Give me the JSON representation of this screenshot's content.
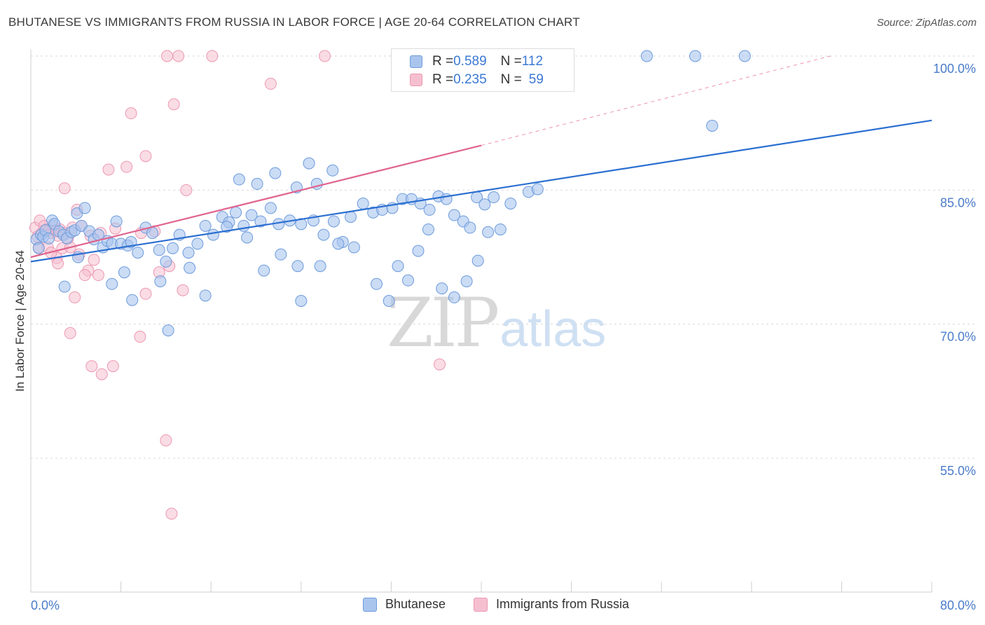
{
  "header": {
    "title": "BHUTANESE VS IMMIGRANTS FROM RUSSIA IN LABOR FORCE | AGE 20-64 CORRELATION CHART",
    "source": "Source: ZipAtlas.com"
  },
  "watermark": {
    "zip": "ZIP",
    "atlas": "atlas"
  },
  "legend": {
    "rows": [
      {
        "r_label": "R = ",
        "r_value": "0.589",
        "n_label": "N = ",
        "n_value": "112"
      },
      {
        "r_label": "R = ",
        "r_value": "0.235",
        "n_label": "N = ",
        "n_value": "59"
      }
    ]
  },
  "bottom_legend": {
    "series_a": "Bhutanese",
    "series_b": "Immigrants from Russia"
  },
  "colors": {
    "blue_fill": "#a9c5ee",
    "blue_stroke": "#6d9bdc",
    "blue_line": "#2b6fd1",
    "pink_fill": "#f6bfd0",
    "pink_stroke": "#ec98b3",
    "pink_line": "#e0648f",
    "grid": "#d9d9d9",
    "tick_text": "#4a7cc9"
  },
  "chart_data": {
    "type": "scatter",
    "title": "BHUTANESE VS IMMIGRANTS FROM RUSSIA IN LABOR FORCE | AGE 20-64 CORRELATION CHART",
    "xlabel": "",
    "ylabel": "In Labor Force | Age 20-64",
    "xlim": [
      0,
      80
    ],
    "ylim": [
      40,
      102
    ],
    "x_tick_labels": [
      "0.0%",
      "80.0%"
    ],
    "y_ticks": [
      55,
      70,
      85,
      100
    ],
    "y_tick_labels": [
      "55.0%",
      "70.0%",
      "85.0%",
      "100.0%"
    ],
    "grid": "horizontal dashed",
    "legend_position": "top-center",
    "series": [
      {
        "name": "Bhutanese",
        "r": 0.589,
        "n": 112,
        "trend": {
          "x": [
            0,
            80
          ],
          "y": [
            77.0,
            92.8
          ]
        },
        "points": [
          [
            0.5,
            79.5
          ],
          [
            0.7,
            78.5
          ],
          [
            0.9,
            80.0
          ],
          [
            1.1,
            79.8
          ],
          [
            1.3,
            80.5
          ],
          [
            1.6,
            79.6
          ],
          [
            1.9,
            81.6
          ],
          [
            2.1,
            81.2
          ],
          [
            2.5,
            80.4
          ],
          [
            2.9,
            80.0
          ],
          [
            3.2,
            79.6
          ],
          [
            3.6,
            80.3
          ],
          [
            3.9,
            80.5
          ],
          [
            4.1,
            82.4
          ],
          [
            4.5,
            81.0
          ],
          [
            4.8,
            83.0
          ],
          [
            5.2,
            80.4
          ],
          [
            5.6,
            79.5
          ],
          [
            6.0,
            80.0
          ],
          [
            6.4,
            78.6
          ],
          [
            6.8,
            79.3
          ],
          [
            7.2,
            79.0
          ],
          [
            7.6,
            81.5
          ],
          [
            8.0,
            79.0
          ],
          [
            8.6,
            78.8
          ],
          [
            8.9,
            79.2
          ],
          [
            9.5,
            78.0
          ],
          [
            10.2,
            80.8
          ],
          [
            10.8,
            80.2
          ],
          [
            11.4,
            78.3
          ],
          [
            12.0,
            77.0
          ],
          [
            12.6,
            78.5
          ],
          [
            13.2,
            80.0
          ],
          [
            14.0,
            78.0
          ],
          [
            14.8,
            79.0
          ],
          [
            15.5,
            81.0
          ],
          [
            16.2,
            80.0
          ],
          [
            17.0,
            82.0
          ],
          [
            17.6,
            81.4
          ],
          [
            18.2,
            82.5
          ],
          [
            18.9,
            81.0
          ],
          [
            19.6,
            82.2
          ],
          [
            20.4,
            81.5
          ],
          [
            21.3,
            83.0
          ],
          [
            22.0,
            81.2
          ],
          [
            23.0,
            81.6
          ],
          [
            24.0,
            81.2
          ],
          [
            25.1,
            81.6
          ],
          [
            26.0,
            80.0
          ],
          [
            26.9,
            81.5
          ],
          [
            27.7,
            79.2
          ],
          [
            28.4,
            82.0
          ],
          [
            29.5,
            83.5
          ],
          [
            30.4,
            82.5
          ],
          [
            31.2,
            82.8
          ],
          [
            32.1,
            83.0
          ],
          [
            33.0,
            84.0
          ],
          [
            33.8,
            84.0
          ],
          [
            34.6,
            83.5
          ],
          [
            35.4,
            82.8
          ],
          [
            36.2,
            84.3
          ],
          [
            36.9,
            84.0
          ],
          [
            37.6,
            82.2
          ],
          [
            38.4,
            81.5
          ],
          [
            39.0,
            80.8
          ],
          [
            39.6,
            84.2
          ],
          [
            40.3,
            83.4
          ],
          [
            41.1,
            84.2
          ],
          [
            42.6,
            83.5
          ],
          [
            44.2,
            84.8
          ],
          [
            45.0,
            85.1
          ],
          [
            54.7,
            100
          ],
          [
            59.0,
            100
          ],
          [
            63.4,
            100
          ],
          [
            60.5,
            92.2
          ],
          [
            3.0,
            74.2
          ],
          [
            4.2,
            77.5
          ],
          [
            7.2,
            74.5
          ],
          [
            8.3,
            75.8
          ],
          [
            9.0,
            72.7
          ],
          [
            11.5,
            74.8
          ],
          [
            12.2,
            69.3
          ],
          [
            14.1,
            76.3
          ],
          [
            15.5,
            73.2
          ],
          [
            17.4,
            80.9
          ],
          [
            18.5,
            86.2
          ],
          [
            20.1,
            85.7
          ],
          [
            21.7,
            86.9
          ],
          [
            23.6,
            85.3
          ],
          [
            24.7,
            88.0
          ],
          [
            25.4,
            85.7
          ],
          [
            26.8,
            87.2
          ],
          [
            19.2,
            79.7
          ],
          [
            20.7,
            76.0
          ],
          [
            22.2,
            77.8
          ],
          [
            23.7,
            76.5
          ],
          [
            24.0,
            72.6
          ],
          [
            25.7,
            76.5
          ],
          [
            27.3,
            79.0
          ],
          [
            28.7,
            78.6
          ],
          [
            30.7,
            74.5
          ],
          [
            31.8,
            72.6
          ],
          [
            32.6,
            76.5
          ],
          [
            33.5,
            74.9
          ],
          [
            34.4,
            78.2
          ],
          [
            35.3,
            80.6
          ],
          [
            36.5,
            74.0
          ],
          [
            37.6,
            73.0
          ],
          [
            38.7,
            74.8
          ],
          [
            39.7,
            77.1
          ],
          [
            40.6,
            80.3
          ],
          [
            41.7,
            80.6
          ]
        ]
      },
      {
        "name": "Immigrants from Russia",
        "r": 0.235,
        "n": 59,
        "trend": {
          "x": [
            0,
            40
          ],
          "y": [
            77.5,
            90.0
          ]
        },
        "trend_dashed": {
          "x": [
            40,
            71
          ],
          "y": [
            90.0,
            100.0
          ]
        },
        "points": [
          [
            0.4,
            80.8
          ],
          [
            0.6,
            79.8
          ],
          [
            0.8,
            81.6
          ],
          [
            1.0,
            80.2
          ],
          [
            1.2,
            81.0
          ],
          [
            1.4,
            80.6
          ],
          [
            1.6,
            80.5
          ],
          [
            1.8,
            80.2
          ],
          [
            2.0,
            81.0
          ],
          [
            2.2,
            80.4
          ],
          [
            2.4,
            79.9
          ],
          [
            2.6,
            80.6
          ],
          [
            2.9,
            80.2
          ],
          [
            3.3,
            79.6
          ],
          [
            3.7,
            80.8
          ],
          [
            4.1,
            82.8
          ],
          [
            4.5,
            81.0
          ],
          [
            0.7,
            78.6
          ],
          [
            1.5,
            78.6
          ],
          [
            2.3,
            77.4
          ],
          [
            2.8,
            78.5
          ],
          [
            3.5,
            78.6
          ],
          [
            4.3,
            77.8
          ],
          [
            5.1,
            76.0
          ],
          [
            5.6,
            77.2
          ],
          [
            6.0,
            75.5
          ],
          [
            4.8,
            75.5
          ],
          [
            3.9,
            73.0
          ],
          [
            2.4,
            76.8
          ],
          [
            1.8,
            78.0
          ],
          [
            3.5,
            69.0
          ],
          [
            5.4,
            65.3
          ],
          [
            6.3,
            64.4
          ],
          [
            7.3,
            65.3
          ],
          [
            9.7,
            68.6
          ],
          [
            10.2,
            73.4
          ],
          [
            11.4,
            75.8
          ],
          [
            12.3,
            76.5
          ],
          [
            13.5,
            73.8
          ],
          [
            12.0,
            57.0
          ],
          [
            12.5,
            48.8
          ],
          [
            12.1,
            100
          ],
          [
            13.1,
            100
          ],
          [
            16.1,
            100
          ],
          [
            26.1,
            100
          ],
          [
            21.3,
            96.9
          ],
          [
            8.9,
            93.6
          ],
          [
            12.7,
            94.6
          ],
          [
            6.9,
            87.3
          ],
          [
            8.5,
            87.6
          ],
          [
            10.2,
            88.8
          ],
          [
            13.8,
            85.0
          ],
          [
            3.0,
            85.2
          ],
          [
            36.3,
            65.5
          ],
          [
            9.8,
            80.2
          ],
          [
            7.5,
            80.7
          ],
          [
            11.0,
            80.4
          ],
          [
            6.2,
            80.2
          ],
          [
            5.3,
            79.9
          ]
        ]
      }
    ]
  }
}
